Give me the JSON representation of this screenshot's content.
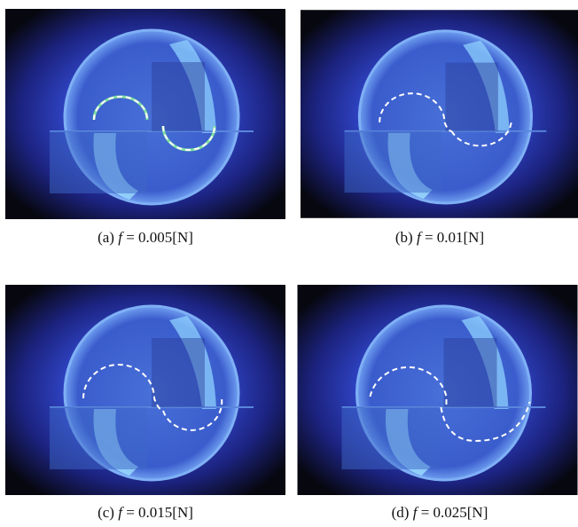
{
  "figure": {
    "panels": [
      {
        "label": "(a)",
        "symbol": "f",
        "value": "= 0.005[N]"
      },
      {
        "label": "(b)",
        "symbol": "f",
        "value": "= 0.01[N]"
      },
      {
        "label": "(c)",
        "symbol": "f",
        "value": "= 0.015[N]"
      },
      {
        "label": "(d)",
        "symbol": "f",
        "value": "= 0.025[N]"
      }
    ]
  }
}
